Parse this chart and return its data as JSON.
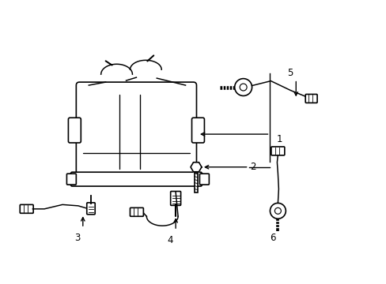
{
  "background_color": "#ffffff",
  "line_color": "#000000",
  "line_width": 1.2,
  "fig_width": 4.89,
  "fig_height": 3.6,
  "dpi": 100
}
